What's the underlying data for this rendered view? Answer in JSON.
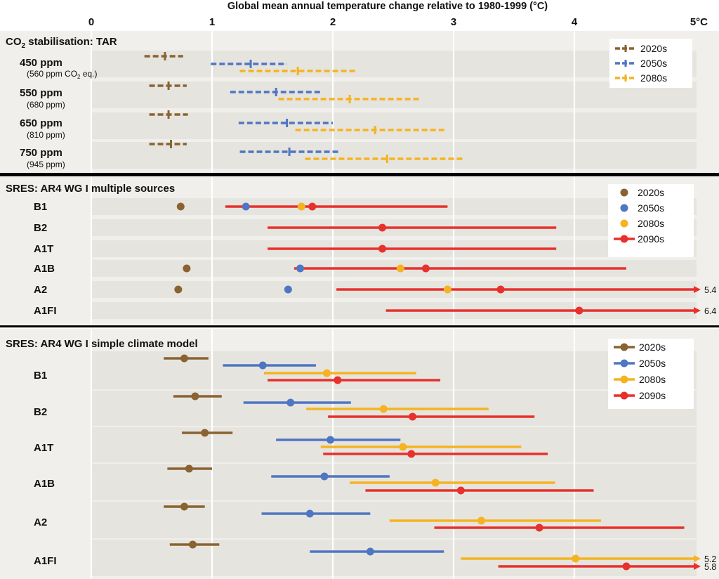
{
  "chart_data": {
    "type": "range-dot",
    "title": "Global mean annual temperature change relative to 1980-1999 (°C)",
    "x_axis": {
      "ticks": [
        0,
        1,
        2,
        3,
        4,
        5
      ],
      "tick_labels": [
        "0",
        "1",
        "2",
        "3",
        "4",
        "5°C"
      ],
      "range": [
        0,
        5
      ]
    },
    "colors": {
      "2020s": "#8a6332",
      "2050s": "#4f76c2",
      "2080s": "#f5b321",
      "2090s": "#e8302c",
      "panel_bg": "#f1efeb",
      "row_band": "#e6e4df",
      "grid": "#ffffff"
    },
    "panels": [
      {
        "title_main": "CO",
        "title_sub": "2",
        "title_rest": " stabilisation: TAR",
        "style": "dashed",
        "legend": [
          "2020s",
          "2050s",
          "2080s"
        ],
        "rows": [
          {
            "label": "450 ppm",
            "sublabel_pre": "(560 ppm CO",
            "sublabel_sub": "2",
            "sublabel_post": " eq.)",
            "series": [
              {
                "name": "2020s",
                "low": 0.44,
                "mid": 0.61,
                "high": 0.76
              },
              {
                "name": "2050s",
                "low": 0.99,
                "mid": 1.32,
                "high": 1.62
              },
              {
                "name": "2080s",
                "low": 1.23,
                "mid": 1.71,
                "high": 2.2
              }
            ]
          },
          {
            "label": "550 ppm",
            "sublabel": "(680 ppm)",
            "series": [
              {
                "name": "2020s",
                "low": 0.48,
                "mid": 0.64,
                "high": 0.79
              },
              {
                "name": "2050s",
                "low": 1.15,
                "mid": 1.53,
                "high": 1.9
              },
              {
                "name": "2080s",
                "low": 1.55,
                "mid": 2.14,
                "high": 2.72
              }
            ]
          },
          {
            "label": "650 ppm",
            "sublabel": "(810 ppm)",
            "series": [
              {
                "name": "2020s",
                "low": 0.48,
                "mid": 0.64,
                "high": 0.8
              },
              {
                "name": "2050s",
                "low": 1.22,
                "mid": 1.62,
                "high": 2.0
              },
              {
                "name": "2080s",
                "low": 1.69,
                "mid": 2.35,
                "high": 2.94
              }
            ]
          },
          {
            "label": "750 ppm",
            "sublabel": "(945 ppm)",
            "series": [
              {
                "name": "2020s",
                "low": 0.48,
                "mid": 0.66,
                "high": 0.79
              },
              {
                "name": "2050s",
                "low": 1.23,
                "mid": 1.64,
                "high": 2.05
              },
              {
                "name": "2080s",
                "low": 1.77,
                "mid": 2.45,
                "high": 3.08
              }
            ]
          }
        ]
      },
      {
        "title": "SRES: AR4 WG I multiple sources",
        "style": "range",
        "legend": [
          "2020s",
          "2050s",
          "2080s",
          "2090s"
        ],
        "rows": [
          {
            "label": "B1",
            "points": [
              {
                "name": "2020s",
                "value": 0.74
              },
              {
                "name": "2050s",
                "value": 1.28
              },
              {
                "name": "2080s",
                "value": 1.74
              },
              {
                "name": "2090s",
                "value": 1.83
              }
            ],
            "range": {
              "low": 1.11,
              "high": 2.95
            }
          },
          {
            "label": "B2",
            "points": [
              {
                "name": "2090s",
                "value": 2.41
              }
            ],
            "range": {
              "low": 1.46,
              "high": 3.85
            }
          },
          {
            "label": "A1T",
            "points": [
              {
                "name": "2090s",
                "value": 2.41
              }
            ],
            "range": {
              "low": 1.46,
              "high": 3.85
            }
          },
          {
            "label": "A1B",
            "points": [
              {
                "name": "2020s",
                "value": 0.79
              },
              {
                "name": "2050s",
                "value": 1.73
              },
              {
                "name": "2080s",
                "value": 2.56
              },
              {
                "name": "2090s",
                "value": 2.77
              }
            ],
            "range": {
              "low": 1.68,
              "high": 4.43
            }
          },
          {
            "label": "A2",
            "points": [
              {
                "name": "2020s",
                "value": 0.72
              },
              {
                "name": "2050s",
                "value": 1.63
              },
              {
                "name": "2080s",
                "value": 2.95
              },
              {
                "name": "2090s",
                "value": 3.39
              }
            ],
            "range": {
              "low": 2.03,
              "high": 5.4
            },
            "overflow_label": "5.4"
          },
          {
            "label": "A1FI",
            "points": [
              {
                "name": "2090s",
                "value": 4.04
              }
            ],
            "range": {
              "low": 2.44,
              "high": 6.4
            },
            "overflow_label": "6.4"
          }
        ]
      },
      {
        "title": "SRES: AR4 WG I simple climate model",
        "style": "errorbar",
        "legend": [
          "2020s",
          "2050s",
          "2080s",
          "2090s"
        ],
        "rows": [
          {
            "label": "B1",
            "series": [
              {
                "name": "2020s",
                "low": 0.6,
                "mid": 0.77,
                "high": 0.97
              },
              {
                "name": "2050s",
                "low": 1.09,
                "mid": 1.42,
                "high": 1.86
              },
              {
                "name": "2080s",
                "low": 1.43,
                "mid": 1.95,
                "high": 2.69
              },
              {
                "name": "2090s",
                "low": 1.46,
                "mid": 2.04,
                "high": 2.89
              }
            ]
          },
          {
            "label": "B2",
            "series": [
              {
                "name": "2020s",
                "low": 0.68,
                "mid": 0.86,
                "high": 1.08
              },
              {
                "name": "2050s",
                "low": 1.26,
                "mid": 1.65,
                "high": 2.15
              },
              {
                "name": "2080s",
                "low": 1.78,
                "mid": 2.42,
                "high": 3.29
              },
              {
                "name": "2090s",
                "low": 1.96,
                "mid": 2.66,
                "high": 3.67
              }
            ]
          },
          {
            "label": "A1T",
            "series": [
              {
                "name": "2020s",
                "low": 0.75,
                "mid": 0.94,
                "high": 1.17
              },
              {
                "name": "2050s",
                "low": 1.53,
                "mid": 1.98,
                "high": 2.56
              },
              {
                "name": "2080s",
                "low": 1.9,
                "mid": 2.58,
                "high": 3.56
              },
              {
                "name": "2090s",
                "low": 1.92,
                "mid": 2.65,
                "high": 3.78
              }
            ]
          },
          {
            "label": "A1B",
            "series": [
              {
                "name": "2020s",
                "low": 0.63,
                "mid": 0.81,
                "high": 1.0
              },
              {
                "name": "2050s",
                "low": 1.49,
                "mid": 1.93,
                "high": 2.47
              },
              {
                "name": "2080s",
                "low": 2.14,
                "mid": 2.85,
                "high": 3.84
              },
              {
                "name": "2090s",
                "low": 2.27,
                "mid": 3.06,
                "high": 4.16
              }
            ]
          },
          {
            "label": "A2",
            "series": [
              {
                "name": "2020s",
                "low": 0.6,
                "mid": 0.77,
                "high": 0.94
              },
              {
                "name": "2050s",
                "low": 1.41,
                "mid": 1.81,
                "high": 2.31
              },
              {
                "name": "2080s",
                "low": 2.47,
                "mid": 3.23,
                "high": 4.22
              },
              {
                "name": "2090s",
                "low": 2.84,
                "mid": 3.71,
                "high": 4.91
              }
            ]
          },
          {
            "label": "A1FI",
            "series": [
              {
                "name": "2020s",
                "low": 0.65,
                "mid": 0.84,
                "high": 1.06
              },
              {
                "name": "2050s",
                "low": 1.81,
                "mid": 2.31,
                "high": 2.92
              },
              {
                "name": "2080s",
                "low": 3.06,
                "mid": 4.01,
                "high": 5.2
              },
              {
                "name": "2090s",
                "low": 3.37,
                "mid": 4.43,
                "high": 5.8
              }
            ],
            "overflow": [
              {
                "name": "2080s",
                "label": "5.2"
              },
              {
                "name": "2090s",
                "label": "5.8"
              }
            ]
          }
        ]
      }
    ]
  }
}
